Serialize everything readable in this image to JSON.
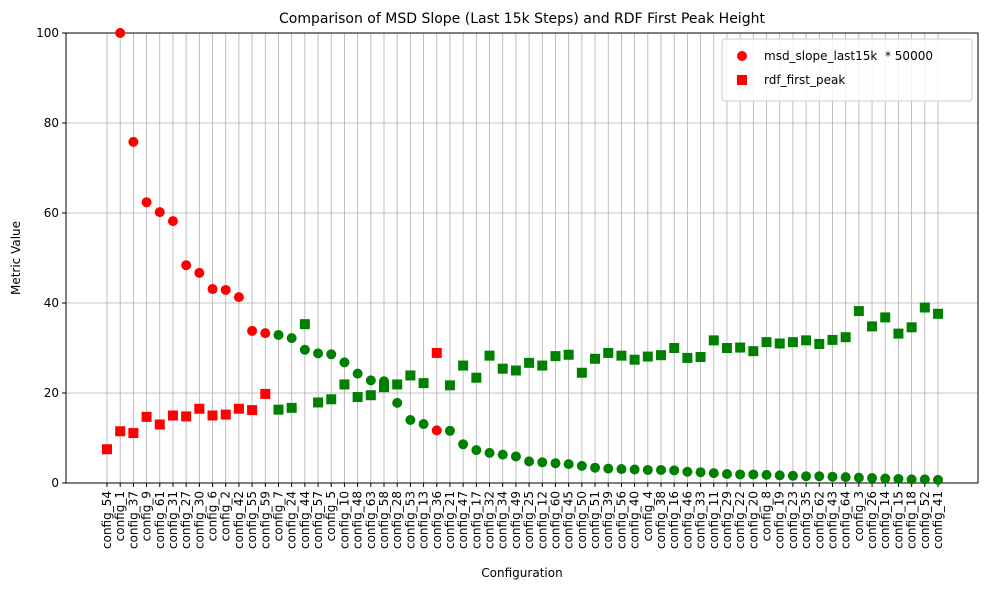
{
  "chart_data": {
    "type": "scatter",
    "title": "Comparison of MSD Slope (Last 15k Steps) and RDF First Peak Height",
    "x_label": "Configuration",
    "y_label": "Metric Value",
    "categories": [
      "config_54",
      "config_1",
      "config_37",
      "config_9",
      "config_61",
      "config_31",
      "config_27",
      "config_30",
      "config_6",
      "config_2",
      "config_42",
      "config_55",
      "config_59",
      "config_7",
      "config_24",
      "config_44",
      "config_57",
      "config_5",
      "config_10",
      "config_48",
      "config_63",
      "config_58",
      "config_28",
      "config_53",
      "config_13",
      "config_36",
      "config_21",
      "config_47",
      "config_17",
      "config_32",
      "config_34",
      "config_49",
      "config_25",
      "config_12",
      "config_60",
      "config_45",
      "config_50",
      "config_51",
      "config_39",
      "config_56",
      "config_40",
      "config_4",
      "config_38",
      "config_16",
      "config_46",
      "config_33",
      "config_11",
      "config_29",
      "config_22",
      "config_20",
      "config_8",
      "config_19",
      "config_23",
      "config_35",
      "config_62",
      "config_43",
      "config_64",
      "config_3",
      "config_26",
      "config_14",
      "config_15",
      "config_18",
      "config_52",
      "config_41"
    ],
    "colors": [
      "red",
      "red",
      "red",
      "red",
      "red",
      "red",
      "red",
      "red",
      "red",
      "red",
      "red",
      "red",
      "red",
      "green",
      "green",
      "green",
      "green",
      "green",
      "green",
      "green",
      "green",
      "green",
      "green",
      "green",
      "green",
      "red",
      "green",
      "green",
      "green",
      "green",
      "green",
      "green",
      "green",
      "green",
      "green",
      "green",
      "green",
      "green",
      "green",
      "green",
      "green",
      "green",
      "green",
      "green",
      "green",
      "green",
      "green",
      "green",
      "green",
      "green",
      "green",
      "green",
      "green",
      "green",
      "green",
      "green",
      "green",
      "green",
      "green",
      "green",
      "green",
      "green",
      "green",
      "green"
    ],
    "series": [
      {
        "name": "msd_slope_last15k  * 50000",
        "color": "red",
        "marker": "circle",
        "values": [
          null,
          100,
          75.8,
          62.4,
          60.2,
          58.2,
          48.4,
          46.7,
          43.1,
          42.9,
          41.3,
          33.8,
          33.3,
          32.9,
          32.2,
          29.6,
          28.8,
          28.6,
          26.8,
          24.3,
          22.8,
          22.6,
          17.8,
          14.0,
          13.1,
          11.7,
          11.6,
          8.6,
          7.3,
          6.7,
          6.3,
          5.9,
          4.8,
          4.6,
          4.4,
          4.2,
          3.8,
          3.4,
          3.2,
          3.1,
          3.0,
          2.9,
          2.9,
          2.8,
          2.5,
          2.4,
          2.2,
          2.0,
          1.9,
          1.9,
          1.8,
          1.7,
          1.6,
          1.5,
          1.5,
          1.4,
          1.3,
          1.2,
          1.1,
          1.0,
          0.9,
          0.8,
          0.8,
          0.7
        ]
      },
      {
        "name": "rdf_first_peak",
        "color": "red",
        "marker": "square",
        "values": [
          7.5,
          11.5,
          11.1,
          14.7,
          13.0,
          15.0,
          14.8,
          16.5,
          15.0,
          15.2,
          16.5,
          16.2,
          19.8,
          16.3,
          16.7,
          35.3,
          17.9,
          18.6,
          21.9,
          19.1,
          19.5,
          21.3,
          21.9,
          23.9,
          22.2,
          28.9,
          21.7,
          26.1,
          23.4,
          28.3,
          25.4,
          25.0,
          26.7,
          26.1,
          28.2,
          28.5,
          24.5,
          27.6,
          28.9,
          28.3,
          27.4,
          28.1,
          28.4,
          30.0,
          27.8,
          28.0,
          31.7,
          30.0,
          30.1,
          29.3,
          31.3,
          31.0,
          31.3,
          31.7,
          30.9,
          31.8,
          32.4,
          38.2,
          34.8,
          36.8,
          33.2,
          34.6,
          39.0,
          37.6
        ]
      }
    ],
    "ylim": [
      0,
      100
    ],
    "yticks": [
      0,
      20,
      40,
      60,
      80,
      100
    ],
    "grid": true,
    "legend": "upper right"
  }
}
